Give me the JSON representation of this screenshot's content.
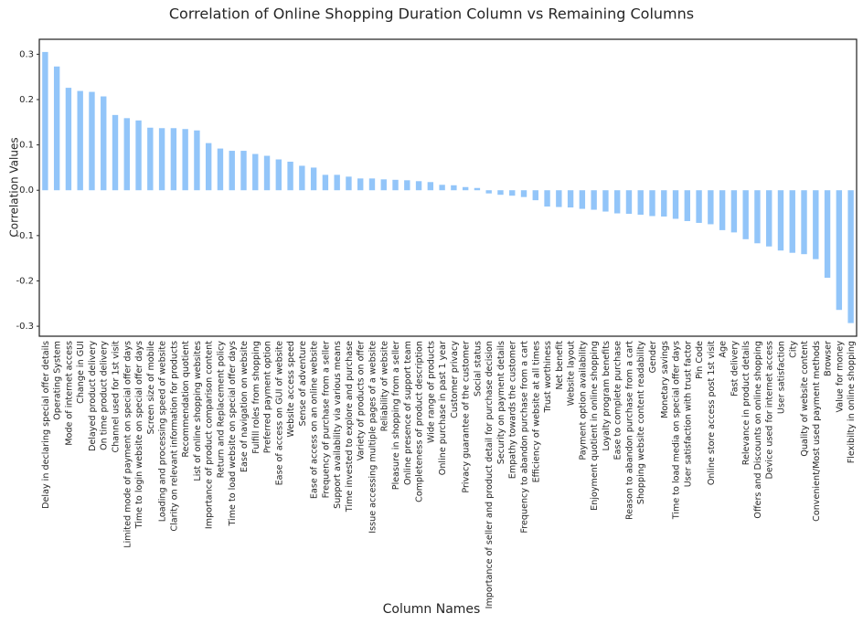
{
  "chart_data": {
    "type": "bar",
    "title": "Correlation of Online Shopping Duration Column vs Remaining Columns",
    "x_label": "Column Names",
    "y_label": "Correlation Values",
    "color": "#92c5f9",
    "categories": [
      "Delay in declaring special offer details",
      "Operating System",
      "Mode of internet access",
      "Change in GUI",
      "Delayed product delivery",
      "On time product delivery",
      "Channel used for 1st visit",
      "Limited mode of payment on special offer days",
      "Time to login website on special offer days",
      "Screen size of mobile",
      "Loading and processing speed of website",
      "Clarity on relevant information for products",
      "Recommendation quotient",
      "List of online shopping websites",
      "Importance of product comparison content",
      "Return and Replacement policy",
      "Time to load website on special offer days",
      "Ease of navigation on website",
      "Fulfill roles from shopping",
      "Preferred payment option",
      "Ease of access on GUI of website",
      "Website access speed",
      "Sense of adventure",
      "Ease of access on an online website",
      "Frequency of purchase from a seller",
      "Support availability via various means",
      "Time invested to explore and purchase",
      "Variety of products on offer",
      "Issue accessing multiple pages of a website",
      "Reliability of website",
      "Pleasure in shopping from a seller",
      "Online presence of support team",
      "Completeness of product description",
      "Wide range of products",
      "Online purchase in past 1 year",
      "Customer privacy",
      "Privacy guarantee of the customer",
      "Social status",
      "Importance of seller and product detail for purchase decision",
      "Security on payment details",
      "Empathy towards the customer",
      "Frequency to abandon purchase from a cart",
      "Efficiency of website at all times",
      "Trust worthiness",
      "Net benefit",
      "Website layout",
      "Payment option availability",
      "Enjoyment quotient in online shopping",
      "Loyalty program benefits",
      "Ease to complete purchase",
      "Reason to abandon purchase from a cart",
      "Shopping website content readability",
      "Gender",
      "Monetary savings",
      "Time to load media on special offer days",
      "User satisfaction with trust factor",
      "Pin Code",
      "Online store access post 1st visit",
      "Age",
      "Fast delivery",
      "Relevance in product details",
      "Offers and Discounts on online shopping",
      "Device used for internet access",
      "User satisfaction",
      "City",
      "Quality of website content",
      "Convenient/Most used payment methods",
      "Browser",
      "Value for money",
      "Flexibilty in online shopping"
    ],
    "values": [
      0.305,
      0.273,
      0.226,
      0.219,
      0.217,
      0.207,
      0.166,
      0.159,
      0.154,
      0.138,
      0.137,
      0.137,
      0.135,
      0.132,
      0.104,
      0.092,
      0.087,
      0.087,
      0.08,
      0.076,
      0.068,
      0.063,
      0.054,
      0.05,
      0.034,
      0.034,
      0.03,
      0.026,
      0.026,
      0.024,
      0.023,
      0.022,
      0.02,
      0.018,
      0.012,
      0.011,
      0.007,
      0.005,
      -0.007,
      -0.01,
      -0.012,
      -0.015,
      -0.022,
      -0.036,
      -0.037,
      -0.038,
      -0.041,
      -0.043,
      -0.047,
      -0.051,
      -0.052,
      -0.054,
      -0.057,
      -0.058,
      -0.063,
      -0.068,
      -0.072,
      -0.075,
      -0.088,
      -0.093,
      -0.108,
      -0.117,
      -0.124,
      -0.133,
      -0.138,
      -0.141,
      -0.152,
      -0.193,
      -0.264,
      -0.293
    ],
    "ylim": [
      -0.322,
      0.333
    ],
    "yticks": [
      -0.3,
      -0.2,
      -0.1,
      {
        "value": 0,
        "label": "0.0"
      },
      0.1,
      0.2,
      0.3
    ]
  }
}
